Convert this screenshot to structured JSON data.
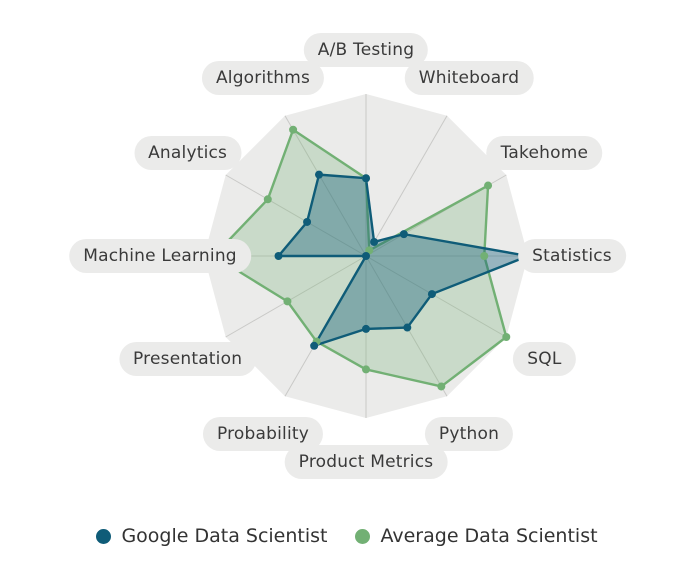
{
  "chart_data": {
    "type": "radar",
    "axes": [
      "A/B Testing",
      "Whiteboard",
      "Takehome",
      "Statistics",
      "SQL",
      "Python",
      "Product Metrics",
      "Probability",
      "Presentation",
      "Machine Learning",
      "Analytics",
      "Algorithms"
    ],
    "range": [
      0,
      1
    ],
    "grid": "polygon",
    "series": [
      {
        "name": "Google Data Scientist",
        "color": "#0f5c78",
        "values": [
          0.48,
          0.1,
          0.27,
          1.0,
          0.47,
          0.51,
          0.45,
          0.64,
          0.0,
          0.54,
          0.42,
          0.58
        ]
      },
      {
        "name": "Average Data Scientist",
        "color": "#72b074",
        "values": [
          0.48,
          0.04,
          0.87,
          0.73,
          1.0,
          0.93,
          0.7,
          0.61,
          0.56,
          0.94,
          0.7,
          0.9
        ]
      }
    ],
    "legend": "bottom"
  }
}
